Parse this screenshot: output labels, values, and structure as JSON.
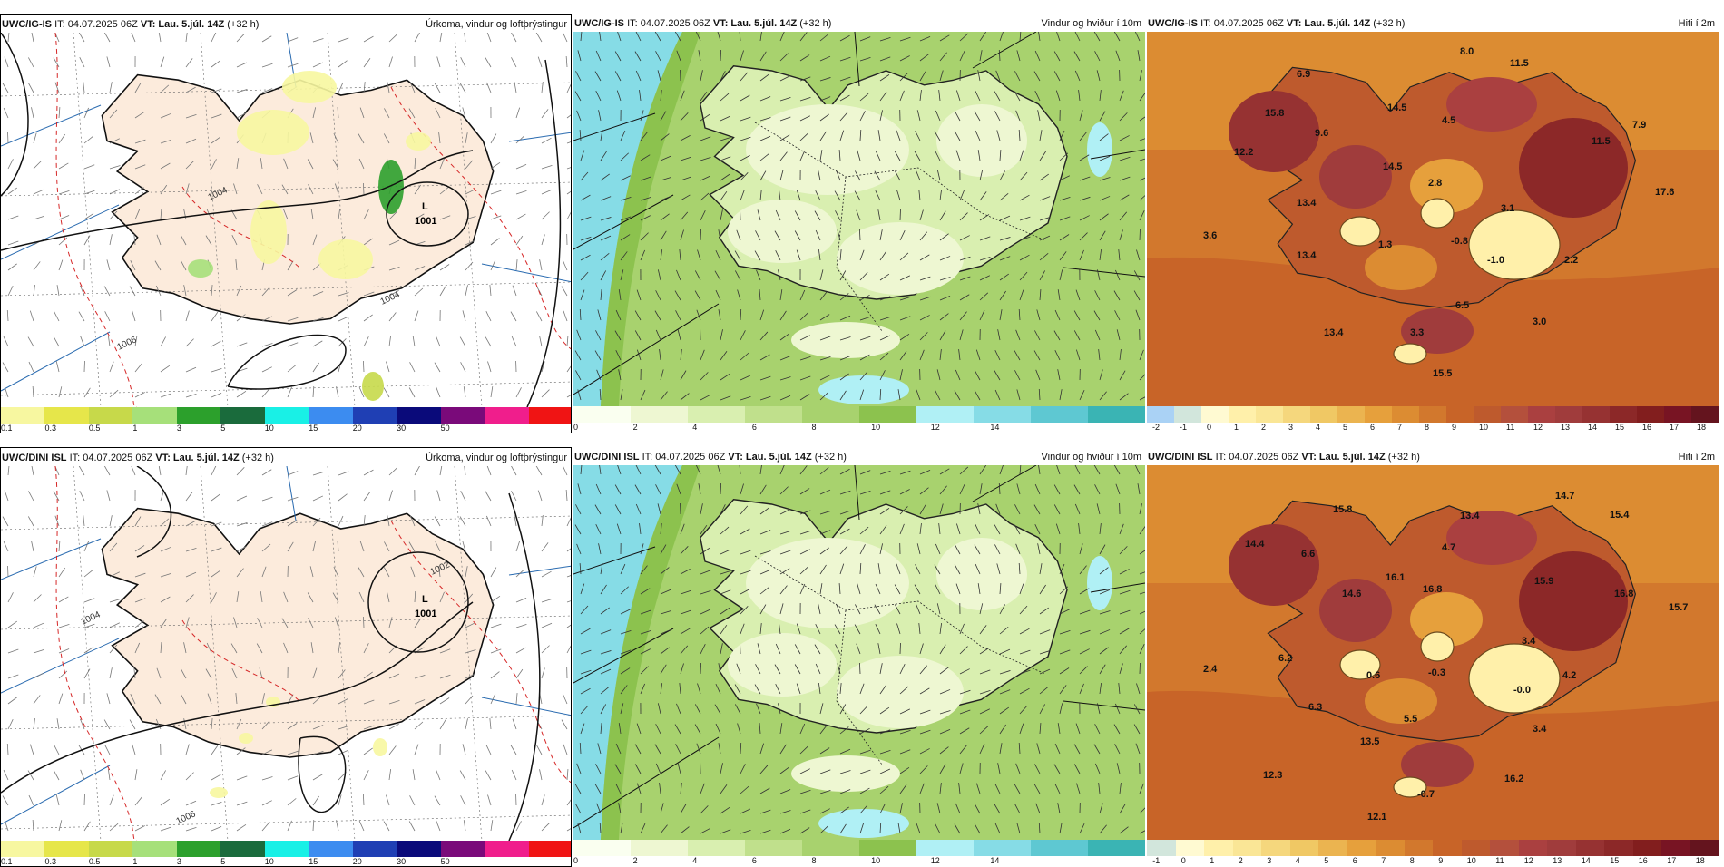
{
  "panels": [
    {
      "type": "precip",
      "model": "UWC/IG-IS",
      "it": "IT: 04.07.2025 06Z",
      "vt_label": "VT:",
      "vt": "Lau. 5.júl. 14Z",
      "lead": "(+32 h)",
      "variable": "Úrkoma, vindur og loftþrýstingur",
      "low_label": "L",
      "low_value": "1001",
      "isobars": [
        "1004",
        "1006",
        "1004"
      ],
      "colorbar": [
        "#f7f7a0",
        "#e6e64a",
        "#c7d94a",
        "#a6e07a",
        "#2ca02c",
        "#1a6b3c",
        "#19f0e6",
        "#3c8cf0",
        "#1f3fb4",
        "#0a0a7a",
        "#7a0a7a",
        "#f01e8c",
        "#f01414"
      ],
      "ticks": [
        "0.1",
        "0.3",
        "0.5",
        "1",
        "3",
        "5",
        "10",
        "15",
        "20",
        "30",
        "50"
      ]
    },
    {
      "type": "wind",
      "model": "UWC/IG-IS",
      "it": "IT: 04.07.2025 06Z",
      "vt_label": "VT:",
      "vt": "Lau. 5.júl. 14Z",
      "lead": "(+32 h)",
      "variable": "Vindur og hviður í 10m",
      "colorbar": [
        "#fafff0",
        "#eef7d2",
        "#d9efb0",
        "#c0e08c",
        "#a8d26e",
        "#8cc24e",
        "#b0f0f5",
        "#86dce6",
        "#5ec8d2",
        "#3ab4b4"
      ],
      "ticks": [
        "0",
        "2",
        "4",
        "6",
        "8",
        "10",
        "12",
        "14"
      ]
    },
    {
      "type": "temp",
      "model": "UWC/IG-IS",
      "it": "IT: 04.07.2025 06Z",
      "vt_label": "VT:",
      "vt": "Lau. 5.júl. 14Z",
      "lead": "(+32 h)",
      "variable": "Hiti í 2m",
      "colorbar": [
        "#aad2f5",
        "#d2e6dc",
        "#fffad2",
        "#fff0aa",
        "#fae696",
        "#f5d77d",
        "#f0c864",
        "#ebb450",
        "#e6a03c",
        "#dc8c32",
        "#d2782d",
        "#c86428",
        "#be5a2d",
        "#b4503c",
        "#aa4040",
        "#a03c3c",
        "#963232",
        "#8c2828",
        "#821e1e",
        "#781423",
        "#64141e"
      ],
      "ticks": [
        "-2",
        "-1",
        "0",
        "1",
        "2",
        "3",
        "4",
        "5",
        "6",
        "7",
        "8",
        "9",
        "10",
        "11",
        "12",
        "13",
        "14",
        "15",
        "16",
        "17",
        "18"
      ],
      "values": [
        "8.0",
        "11.5",
        "6.9",
        "15.8",
        "14.5",
        "4.5",
        "9.6",
        "7.9",
        "11.5",
        "12.2",
        "14.5",
        "2.8",
        "17.6",
        "13.4",
        "3.1",
        "3.6",
        "1.3",
        "-0.8",
        "13.4",
        "-1.0",
        "2.2",
        "6.5",
        "13.4",
        "3.3",
        "3.0",
        "15.5"
      ]
    },
    {
      "type": "precip",
      "model": "UWC/DINI ISL",
      "it": "IT: 04.07.2025 06Z",
      "vt_label": "VT:",
      "vt": "Lau. 5.júl. 14Z",
      "lead": "(+32 h)",
      "variable": "Úrkoma, vindur og loftþrýstingur",
      "low_label": "L",
      "low_value": "1001",
      "isobars": [
        "1002",
        "1004",
        "1006"
      ],
      "colorbar": [
        "#f7f7a0",
        "#e6e64a",
        "#c7d94a",
        "#a6e07a",
        "#2ca02c",
        "#1a6b3c",
        "#19f0e6",
        "#3c8cf0",
        "#1f3fb4",
        "#0a0a7a",
        "#7a0a7a",
        "#f01e8c",
        "#f01414"
      ],
      "ticks": [
        "0.1",
        "0.3",
        "0.5",
        "1",
        "3",
        "5",
        "10",
        "15",
        "20",
        "30",
        "50"
      ]
    },
    {
      "type": "wind",
      "model": "UWC/DINI ISL",
      "it": "IT: 04.07.2025 06Z",
      "vt_label": "VT:",
      "vt": "Lau. 5.júl. 14Z",
      "lead": "(+32 h)",
      "variable": "Vindur og hviður í 10m",
      "colorbar": [
        "#fafff0",
        "#eef7d2",
        "#d9efb0",
        "#c0e08c",
        "#a8d26e",
        "#8cc24e",
        "#b0f0f5",
        "#86dce6",
        "#5ec8d2",
        "#3ab4b4"
      ],
      "ticks": [
        "0",
        "2",
        "4",
        "6",
        "8",
        "10",
        "12",
        "14"
      ]
    },
    {
      "type": "temp",
      "model": "UWC/DINI ISL",
      "it": "IT: 04.07.2025 06Z",
      "vt_label": "VT:",
      "vt": "Lau. 5.júl. 14Z",
      "lead": "(+32 h)",
      "variable": "Hiti í 2m",
      "colorbar": [
        "#d2e6dc",
        "#fffad2",
        "#fff0aa",
        "#fae696",
        "#f5d77d",
        "#f0c864",
        "#ebb450",
        "#e6a03c",
        "#dc8c32",
        "#d2782d",
        "#c86428",
        "#be5a2d",
        "#b4503c",
        "#aa4040",
        "#a03c3c",
        "#963232",
        "#8c2828",
        "#821e1e",
        "#781423",
        "#64141e"
      ],
      "ticks": [
        "-1",
        "0",
        "1",
        "2",
        "3",
        "4",
        "5",
        "6",
        "7",
        "8",
        "9",
        "10",
        "11",
        "12",
        "13",
        "14",
        "15",
        "16",
        "17",
        "18"
      ],
      "values": [
        "14.7",
        "15.8",
        "13.4",
        "15.4",
        "14.4",
        "4.7",
        "6.6",
        "16.1",
        "16.8",
        "15.9",
        "14.6",
        "16.8",
        "15.7",
        "3.4",
        "6.2",
        "2.4",
        "0.6",
        "-0.3",
        "-0.0",
        "4.2",
        "6.3",
        "5.5",
        "13.5",
        "3.4",
        "12.3",
        "16.2",
        "-0.7",
        "12.1"
      ]
    }
  ]
}
